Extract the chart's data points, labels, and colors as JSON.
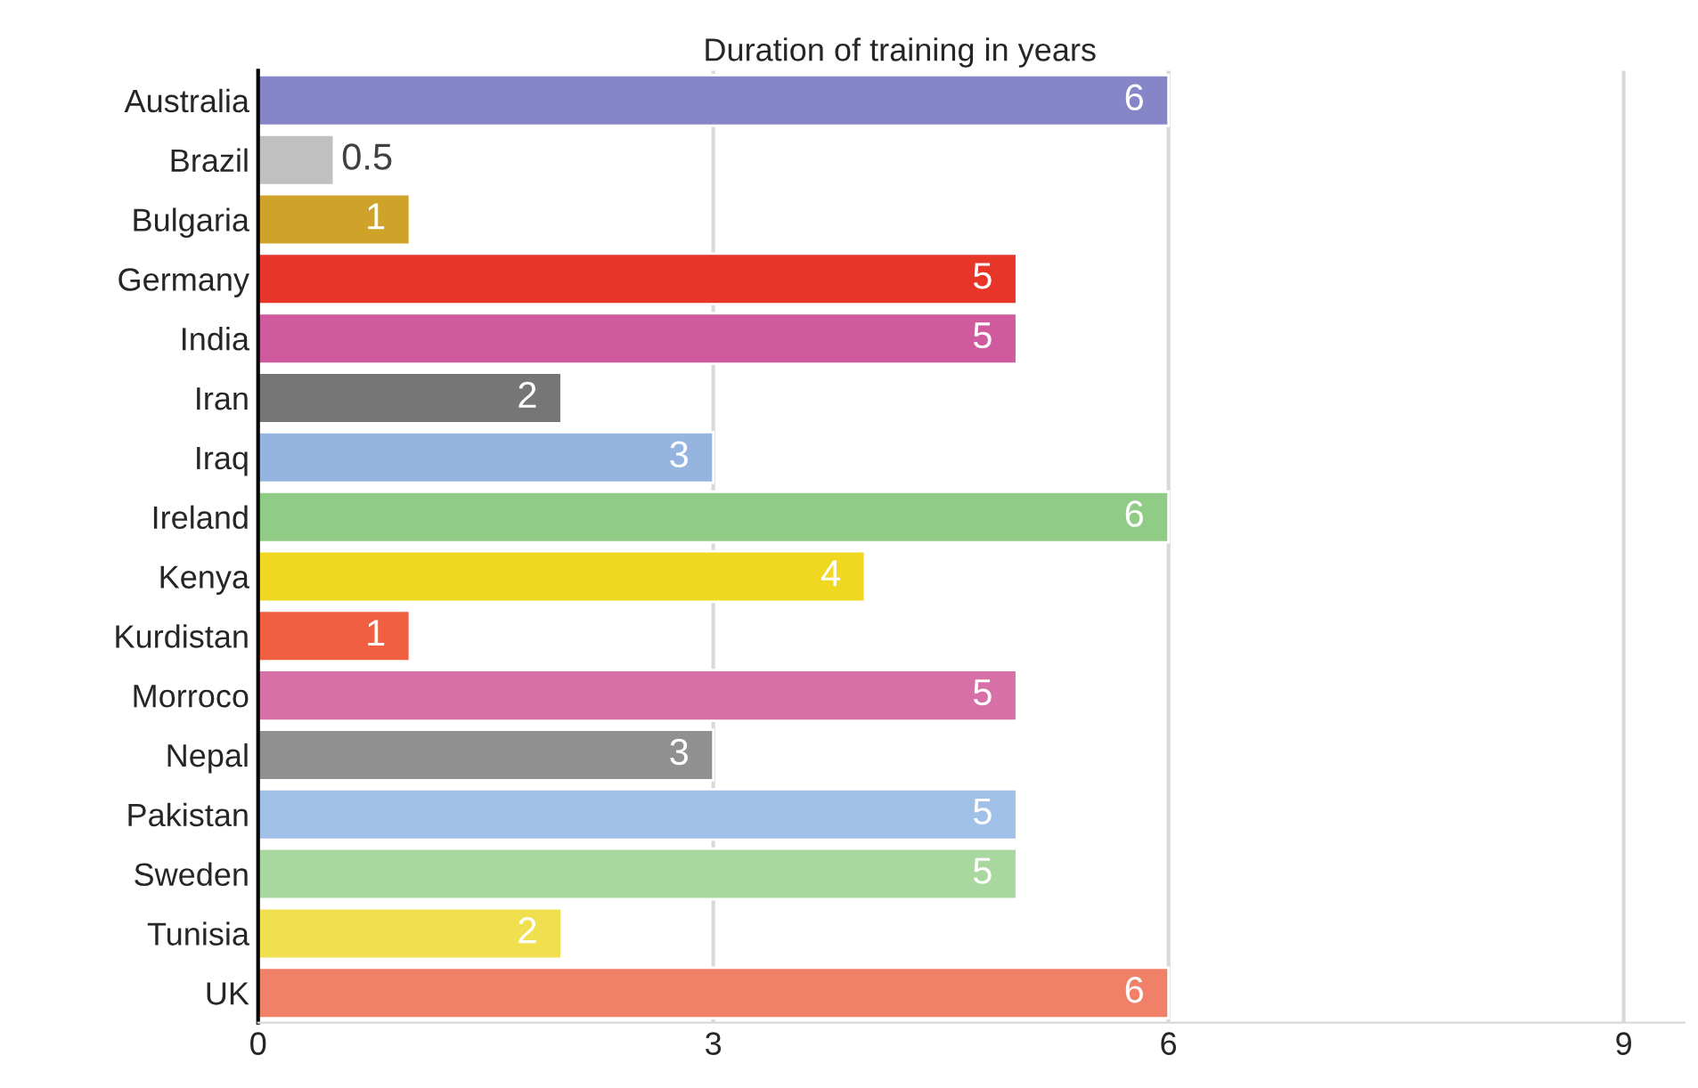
{
  "chart_data": {
    "type": "bar",
    "orientation": "horizontal",
    "title": "Duration of training in years",
    "categories": [
      "Australia",
      "Brazil",
      "Bulgaria",
      "Germany",
      "India",
      "Iran",
      "Iraq",
      "Ireland",
      "Kenya",
      "Kurdistan",
      "Morroco",
      "Nepal",
      "Pakistan",
      "Sweden",
      "Tunisia",
      "UK"
    ],
    "values": [
      6,
      0.5,
      1,
      5,
      5,
      2,
      3,
      6,
      4,
      1,
      5,
      3,
      5,
      5,
      2,
      6
    ],
    "colors": [
      "#8585c8",
      "#c0c0c0",
      "#cfa22a",
      "#e8352a",
      "#d05a9e",
      "#767676",
      "#95b5e0",
      "#90cc85",
      "#f0d820",
      "#f06040",
      "#d870a8",
      "#909090",
      "#a0c0e8",
      "#a8d8a0",
      "#f0e050",
      "#f08068"
    ],
    "xlim": [
      0,
      9.4
    ],
    "xticks": [
      0,
      3,
      6,
      9
    ],
    "grid": "x",
    "data_labels": true
  }
}
